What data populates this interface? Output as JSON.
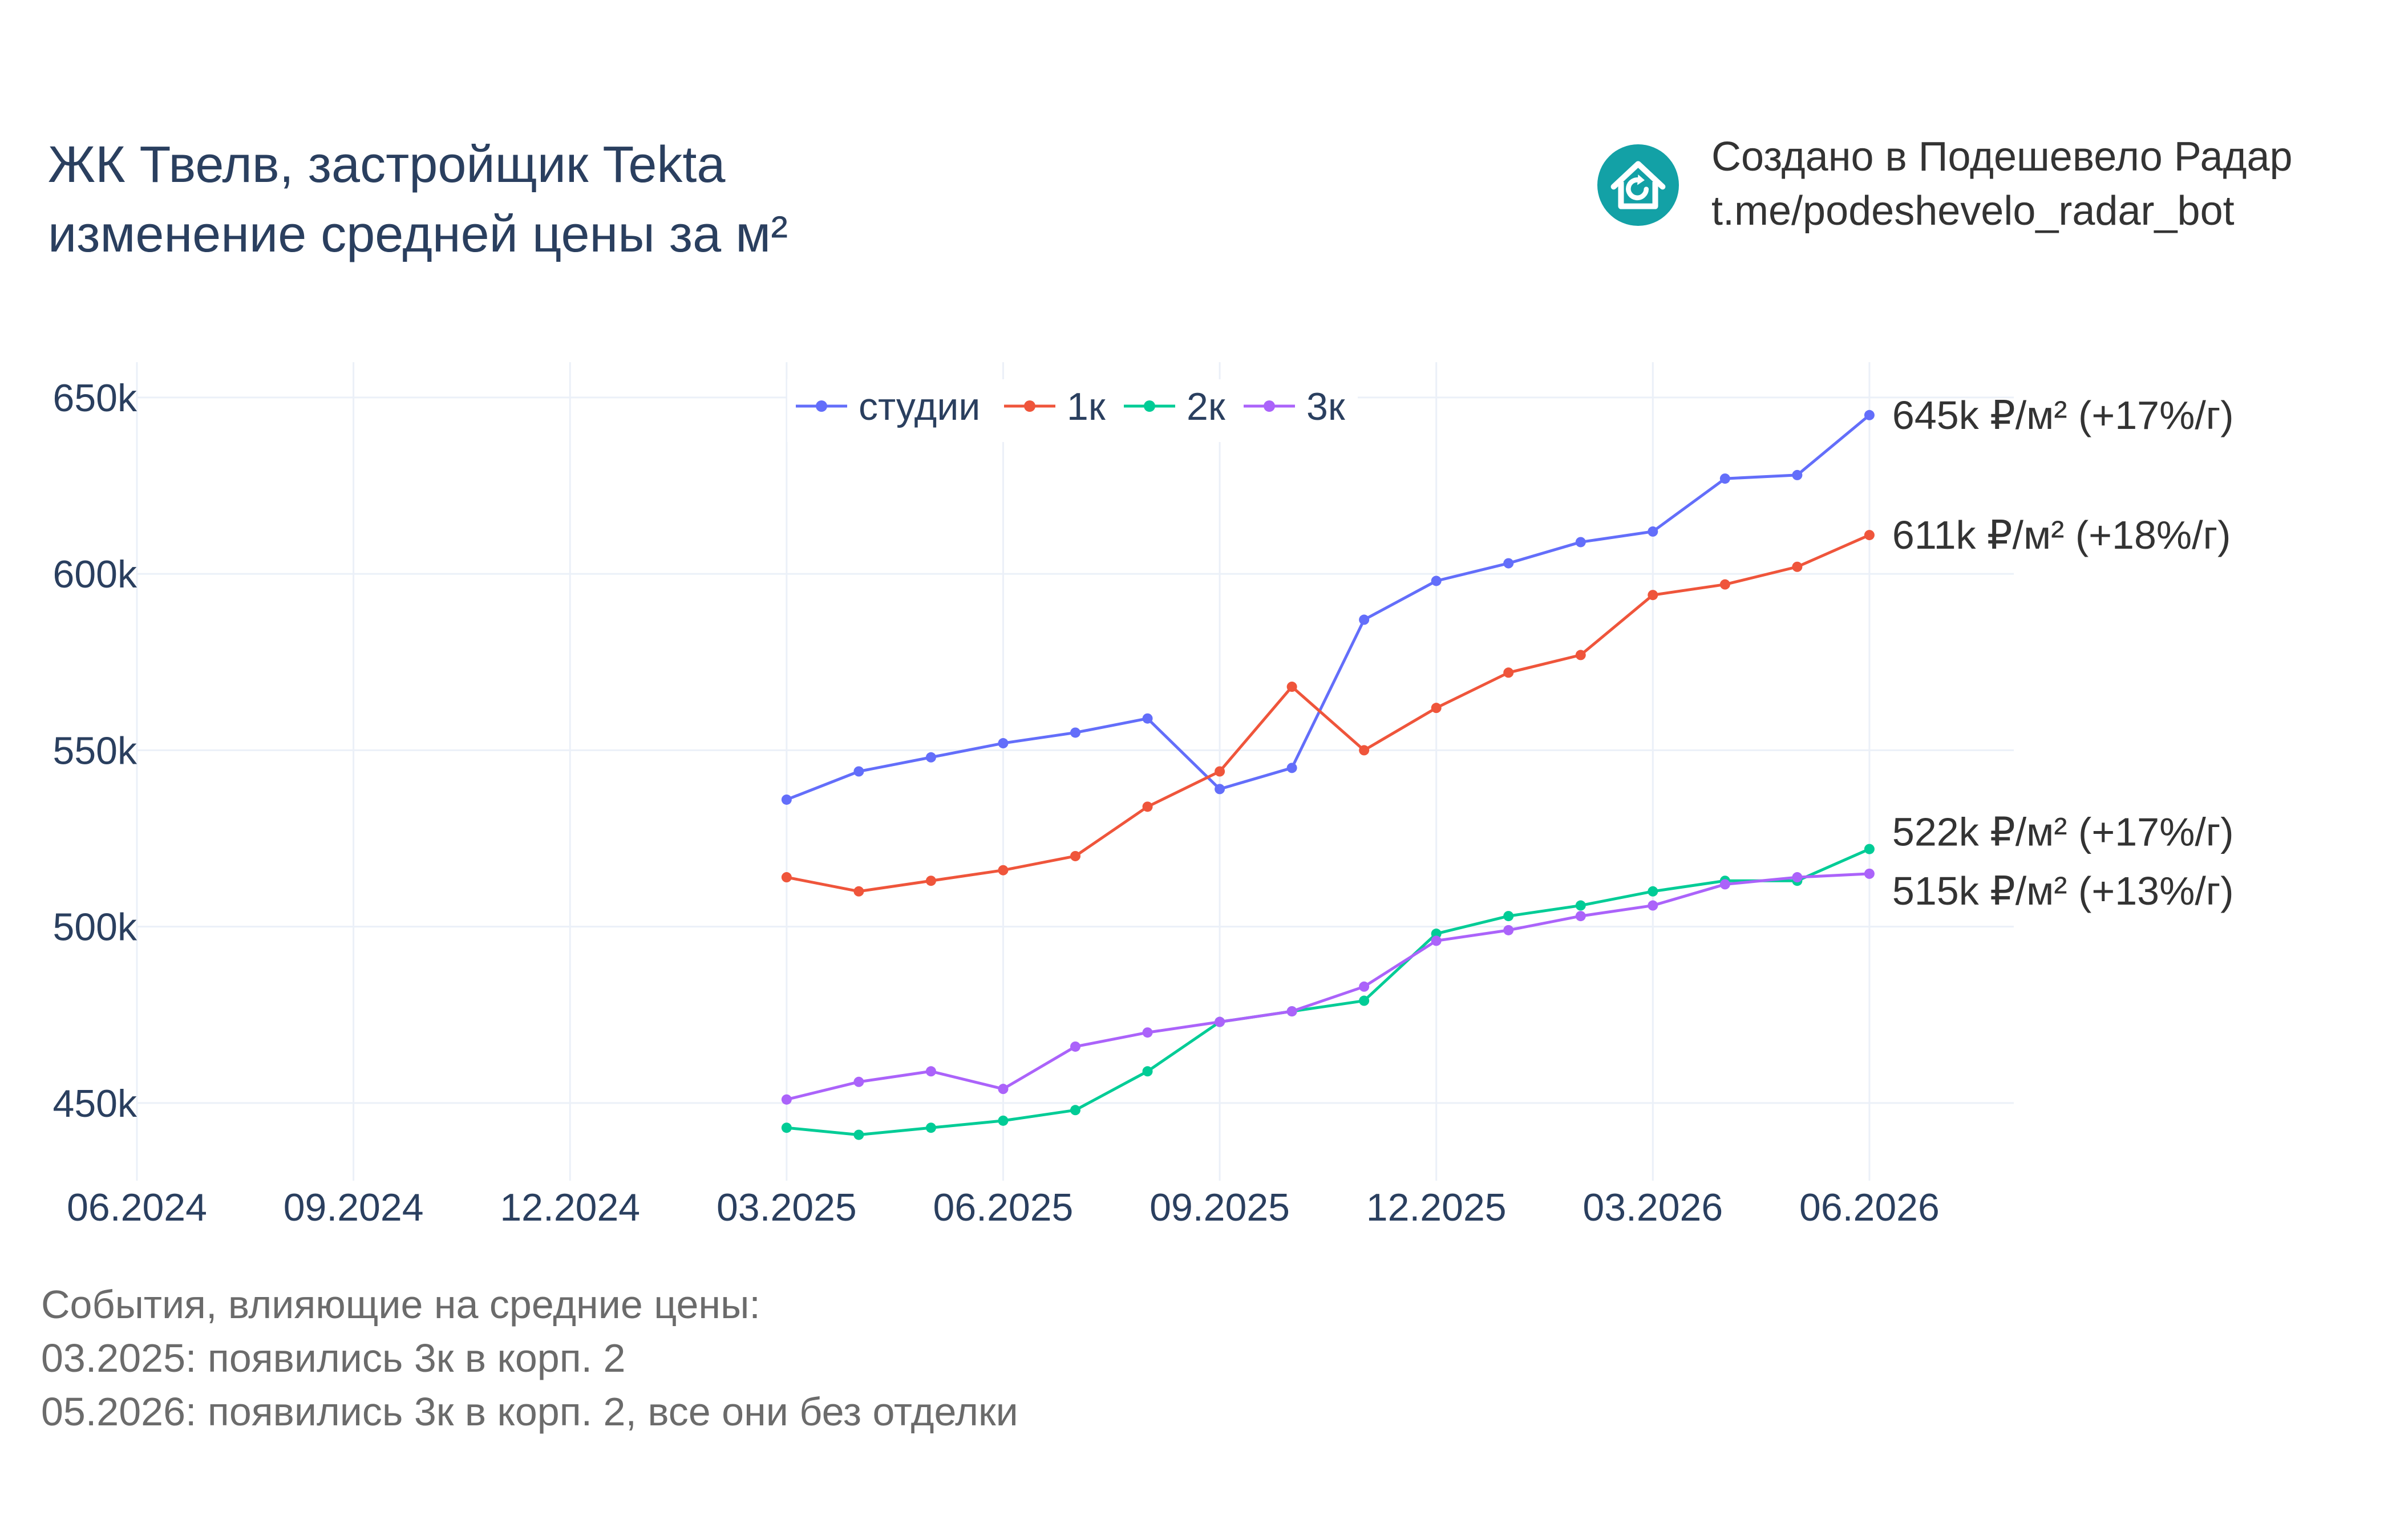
{
  "title": {
    "line1": "ЖК Твелв, застройщик Tekta",
    "line2": "изменение средней цены за м²"
  },
  "brand": {
    "line1": "Создано в Подешевело Радар",
    "line2": "t.me/podeshevelo_radar_bot",
    "logo_icon": "house-refresh-icon",
    "logo_color": "#13a1a6"
  },
  "events": {
    "heading": "События, влияющие на средние цены:",
    "items": [
      "03.2025: появились 3к в корп. 2",
      "05.2026: появились 3к в корп. 2, все они без отделки"
    ]
  },
  "chart_data": {
    "type": "line",
    "x_range": [
      "2024-06",
      "2026-08"
    ],
    "x_ticks": [
      "06.2024",
      "09.2024",
      "12.2024",
      "03.2025",
      "06.2025",
      "09.2025",
      "12.2025",
      "03.2026",
      "06.2026"
    ],
    "ylim": [
      428000,
      660000
    ],
    "y_ticks": [
      450000,
      500000,
      550000,
      600000,
      650000
    ],
    "y_tick_labels": [
      "450k",
      "500k",
      "550k",
      "600k",
      "650k"
    ],
    "grid": true,
    "legend_position": "top-center",
    "x": [
      "2025-03",
      "2025-04",
      "2025-05",
      "2025-06",
      "2025-07",
      "2025-08",
      "2025-09",
      "2025-10",
      "2025-11",
      "2025-12",
      "2026-01",
      "2026-02",
      "2026-03",
      "2026-04",
      "2026-05",
      "2026-06"
    ],
    "series": [
      {
        "name": "студии",
        "color": "#636efa",
        "values": [
          536000,
          544000,
          548000,
          552000,
          555000,
          559000,
          539000,
          545000,
          587000,
          598000,
          603000,
          609000,
          612000,
          627000,
          628000,
          645000
        ],
        "end_label": "645k ₽/м² (+17%/г)"
      },
      {
        "name": "1к",
        "color": "#ef553b",
        "values": [
          514000,
          510000,
          513000,
          516000,
          520000,
          534000,
          544000,
          568000,
          550000,
          562000,
          572000,
          577000,
          594000,
          597000,
          602000,
          611000
        ],
        "end_label": "611k ₽/м² (+18%/г)"
      },
      {
        "name": "2к",
        "color": "#00cc96",
        "values": [
          443000,
          441000,
          443000,
          445000,
          448000,
          459000,
          473000,
          476000,
          479000,
          498000,
          503000,
          506000,
          510000,
          513000,
          513000,
          522000
        ],
        "end_label": "522k ₽/м² (+17%/г)"
      },
      {
        "name": "3к",
        "color": "#ab63fa",
        "values": [
          451000,
          456000,
          459000,
          454000,
          466000,
          470000,
          473000,
          476000,
          483000,
          496000,
          499000,
          503000,
          506000,
          512000,
          514000,
          515000
        ],
        "end_label": "515k ₽/м² (+13%/г)"
      }
    ]
  }
}
